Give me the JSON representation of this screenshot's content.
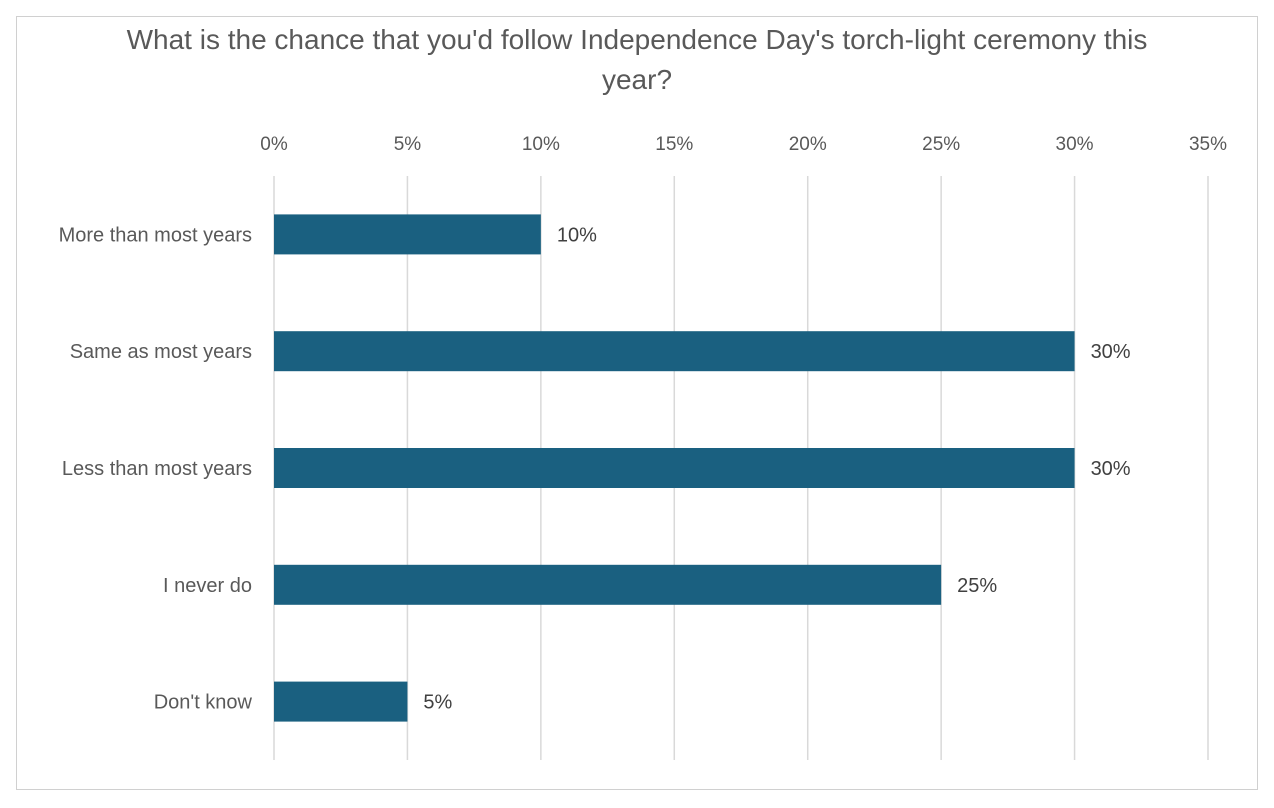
{
  "chart_data": {
    "type": "bar",
    "orientation": "horizontal",
    "title": "What is the chance that you'd follow Independence Day's torch-light ceremony this year?",
    "categories": [
      "More than most years",
      "Same as most years",
      "Less than most years",
      "I never do",
      "Don't know"
    ],
    "values": [
      10,
      30,
      30,
      25,
      5
    ],
    "data_labels": [
      "10%",
      "30%",
      "30%",
      "25%",
      "5%"
    ],
    "xlim": [
      0,
      35
    ],
    "x_ticks": [
      0,
      5,
      10,
      15,
      20,
      25,
      30,
      35
    ],
    "x_tick_labels": [
      "0%",
      "5%",
      "10%",
      "15%",
      "20%",
      "25%",
      "30%",
      "35%"
    ],
    "x_axis_position": "top",
    "grid": true,
    "legend": "none",
    "bar_color": "#1a6080"
  }
}
